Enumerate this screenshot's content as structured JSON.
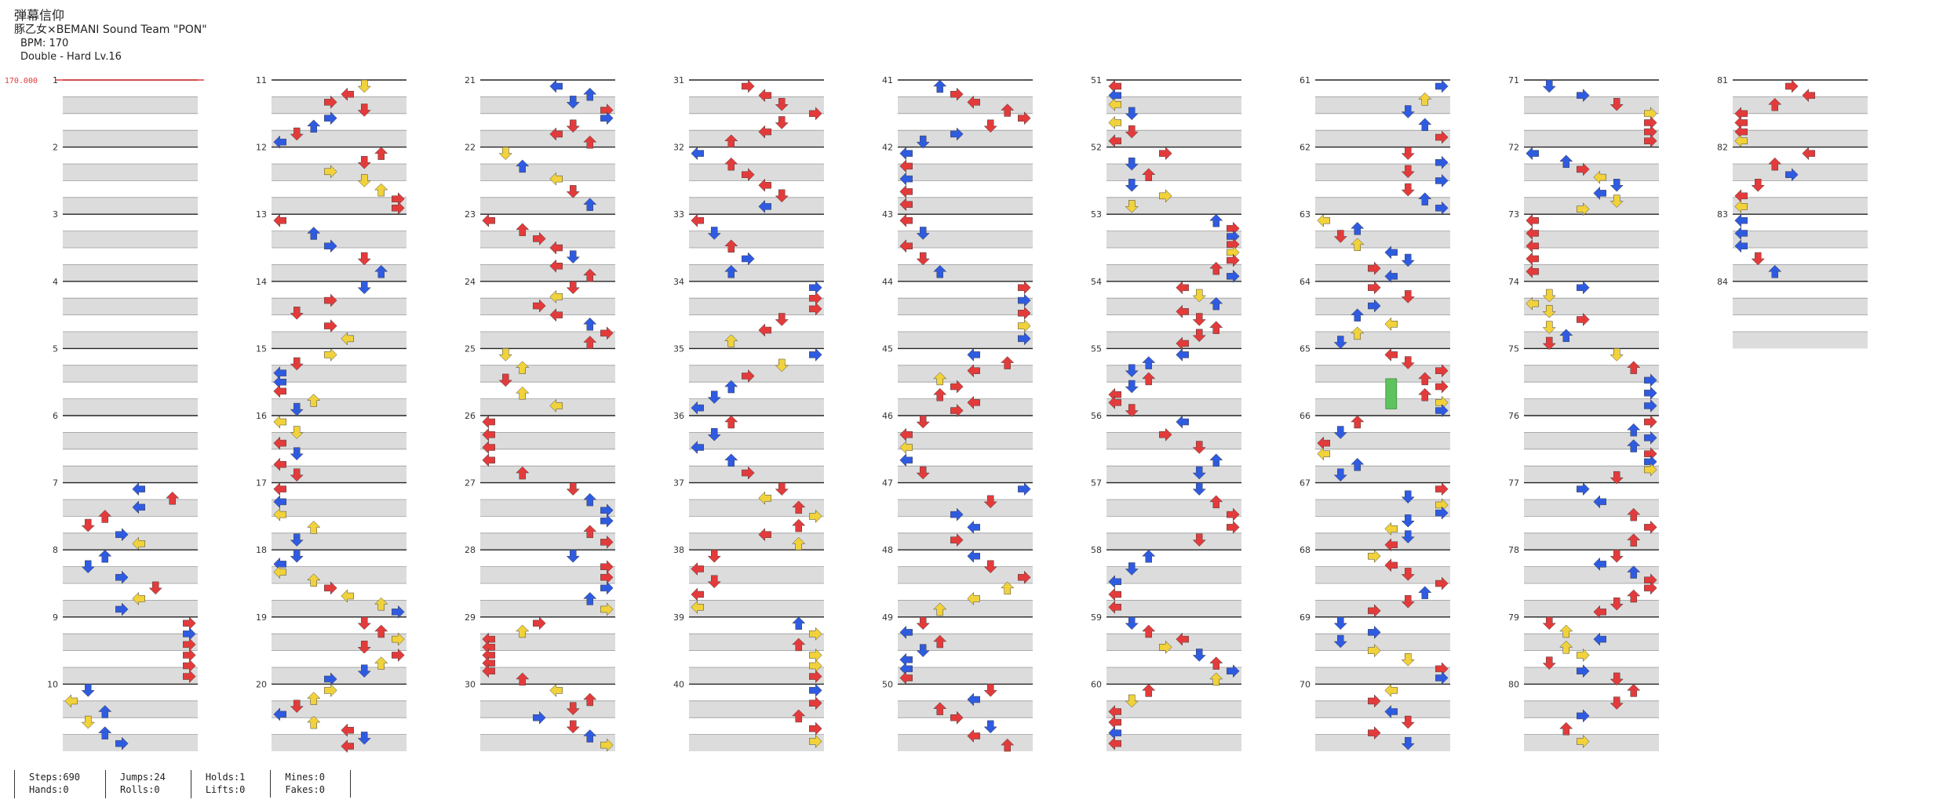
{
  "song": {
    "title": "弾幕信仰",
    "artist": "豚乙女×BEMANI Sound Team \"PON\"",
    "bpm": "BPM: 170",
    "difficulty": "Double - Hard  Lv.16",
    "bpm_marker": "170.000"
  },
  "chart_data": {
    "type": "table",
    "mode": "Double (8 panels)",
    "measures_total": 84,
    "measures_per_column": 10,
    "columns": 9,
    "measure_labels": [
      "1",
      "2",
      "3",
      "4",
      "5",
      "6",
      "7",
      "8",
      "9",
      "10",
      "11",
      "12",
      "13",
      "14",
      "15",
      "16",
      "17",
      "18",
      "19",
      "20",
      "21",
      "22",
      "23",
      "24",
      "25",
      "26",
      "27",
      "28",
      "29",
      "30",
      "31",
      "32",
      "33",
      "34",
      "35",
      "36",
      "37",
      "38",
      "39",
      "40",
      "41",
      "42",
      "43",
      "44",
      "45",
      "46",
      "47",
      "48",
      "49",
      "50",
      "51",
      "52",
      "53",
      "54",
      "55",
      "56",
      "57",
      "58",
      "59",
      "60",
      "61",
      "62",
      "63",
      "64",
      "65",
      "66",
      "67",
      "68",
      "69",
      "70",
      "71",
      "72",
      "73",
      "74",
      "75",
      "76",
      "77",
      "78",
      "79",
      "80",
      "81",
      "82",
      "83",
      "84"
    ],
    "lane_directions": [
      "left",
      "down",
      "up",
      "right",
      "left",
      "down",
      "up",
      "right"
    ],
    "note_colors": {
      "quarter": "#e33b3b",
      "eighth": "#2f5be0",
      "sixteenth": "#f1d23a",
      "twelfth": "#b13be6",
      "hold": "#5ec25e"
    },
    "hold_notes": 1
  },
  "stats": {
    "steps": "Steps:690",
    "hands": "Hands:0",
    "jumps": "Jumps:24",
    "rolls": "Rolls:0",
    "holds": "Holds:1",
    "lifts": "Lifts:0",
    "mines": "Mines:0",
    "fakes": "Fakes:0"
  }
}
